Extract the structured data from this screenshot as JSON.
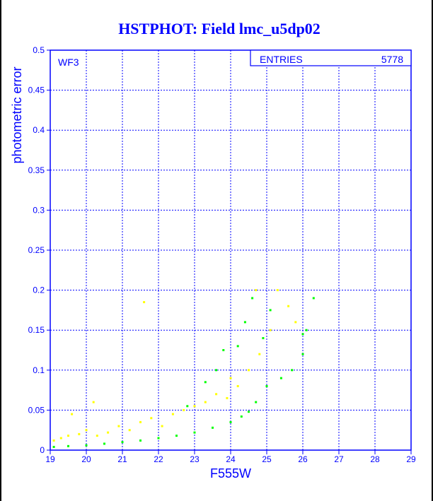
{
  "chart_data": {
    "type": "scatter",
    "title": "HSTPHOT: Field lmc_u5dp02",
    "xlabel": "F555W",
    "ylabel": "photometric error",
    "xlim": [
      19,
      29
    ],
    "ylim": [
      0,
      0.5
    ],
    "x_ticks": [
      "19",
      "20",
      "21",
      "22",
      "23",
      "24",
      "25",
      "26",
      "27",
      "28",
      "29"
    ],
    "y_ticks": [
      "0",
      "0.05",
      "0.1",
      "0.15",
      "0.2",
      "0.25",
      "0.3",
      "0.35",
      "0.4",
      "0.45",
      "0.5"
    ],
    "grid": true,
    "annotation_corner": "WF3",
    "stats_box": {
      "label": "ENTRIES",
      "value": "5778"
    },
    "series": [
      {
        "color": "#ffff00",
        "description_points": [
          [
            19.1,
            0.012
          ],
          [
            19.3,
            0.015
          ],
          [
            19.5,
            0.018
          ],
          [
            19.8,
            0.02
          ],
          [
            20.0,
            0.025
          ],
          [
            20.3,
            0.018
          ],
          [
            20.6,
            0.022
          ],
          [
            20.9,
            0.03
          ],
          [
            21.2,
            0.025
          ],
          [
            21.5,
            0.035
          ],
          [
            21.8,
            0.04
          ],
          [
            22.1,
            0.03
          ],
          [
            22.4,
            0.045
          ],
          [
            22.7,
            0.05
          ],
          [
            23.0,
            0.055
          ],
          [
            23.3,
            0.06
          ],
          [
            23.6,
            0.07
          ],
          [
            23.9,
            0.065
          ],
          [
            24.2,
            0.08
          ],
          [
            24.5,
            0.1
          ],
          [
            24.8,
            0.12
          ],
          [
            25.1,
            0.15
          ],
          [
            25.3,
            0.2
          ],
          [
            25.6,
            0.18
          ],
          [
            25.8,
            0.16
          ],
          [
            21.6,
            0.185
          ],
          [
            20.2,
            0.06
          ],
          [
            19.6,
            0.045
          ],
          [
            24.0,
            0.09
          ],
          [
            24.7,
            0.2
          ]
        ]
      },
      {
        "color": "#00ff00",
        "description_points": [
          [
            19.1,
            0.004
          ],
          [
            19.5,
            0.005
          ],
          [
            20.0,
            0.006
          ],
          [
            20.5,
            0.008
          ],
          [
            21.0,
            0.01
          ],
          [
            21.5,
            0.012
          ],
          [
            22.0,
            0.015
          ],
          [
            22.5,
            0.018
          ],
          [
            23.0,
            0.022
          ],
          [
            23.5,
            0.028
          ],
          [
            24.0,
            0.035
          ],
          [
            24.3,
            0.042
          ],
          [
            24.5,
            0.048
          ],
          [
            24.7,
            0.06
          ],
          [
            25.0,
            0.08
          ],
          [
            25.4,
            0.09
          ],
          [
            25.7,
            0.1
          ],
          [
            26.0,
            0.12
          ],
          [
            26.1,
            0.15
          ],
          [
            26.3,
            0.19
          ],
          [
            24.2,
            0.13
          ],
          [
            24.4,
            0.16
          ],
          [
            24.6,
            0.19
          ],
          [
            23.6,
            0.1
          ],
          [
            23.3,
            0.085
          ],
          [
            25.1,
            0.175
          ],
          [
            26.0,
            0.145
          ],
          [
            24.9,
            0.14
          ],
          [
            23.8,
            0.125
          ],
          [
            22.8,
            0.055
          ]
        ]
      }
    ]
  }
}
